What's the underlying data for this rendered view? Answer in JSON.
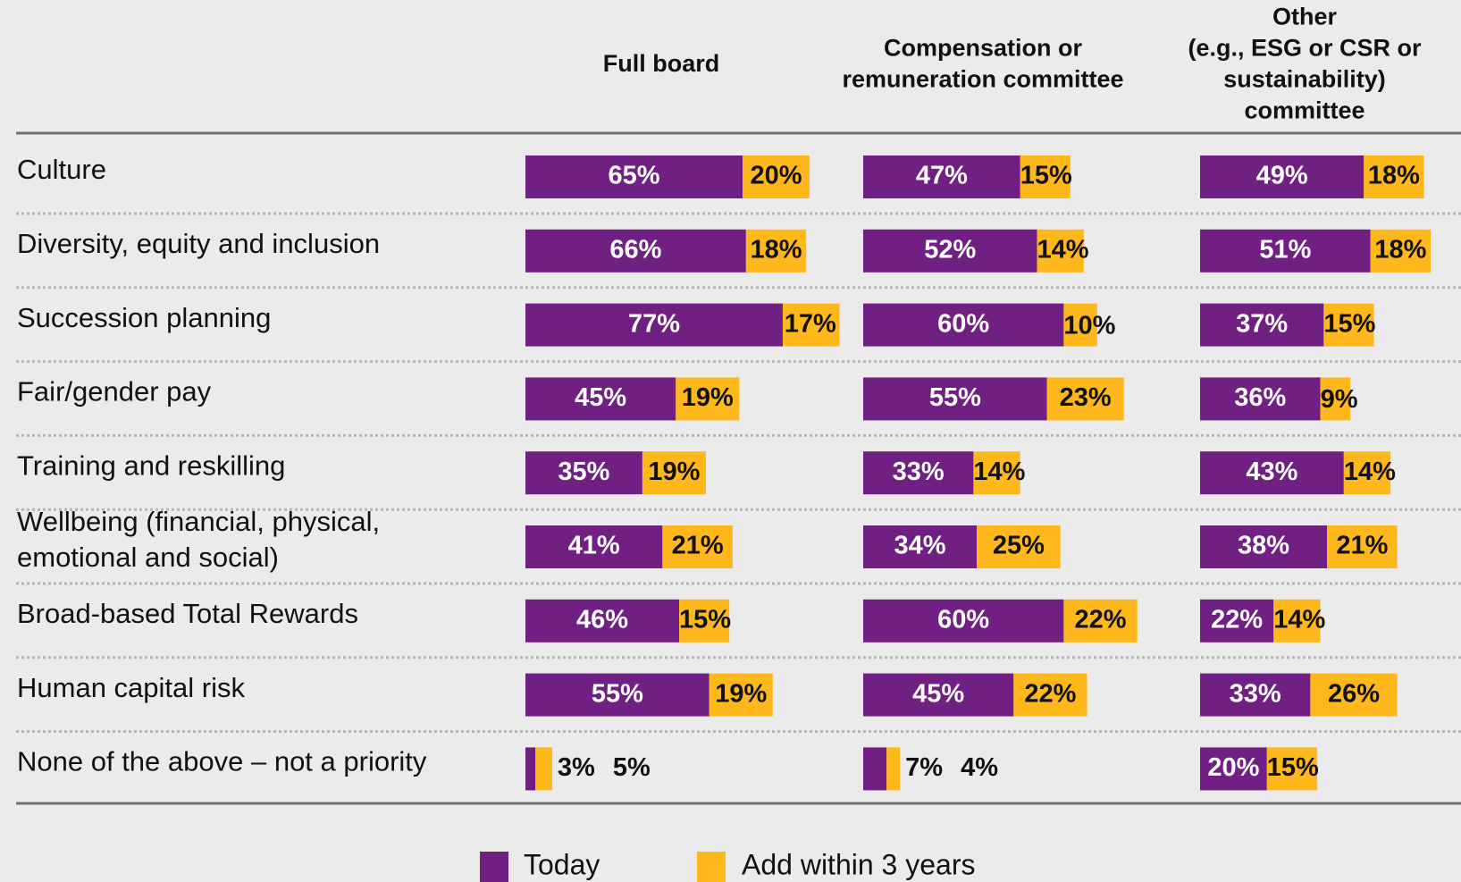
{
  "chart_data": {
    "type": "bar",
    "orientation": "horizontal",
    "stacked": true,
    "categories": [
      "Culture",
      "Diversity, equity and inclusion",
      "Succession planning",
      "Fair/gender pay",
      "Training and reskilling",
      [
        "Wellbeing (financial, physical,",
        "emotional and social)"
      ],
      "Broad-based Total Rewards",
      "Human capital risk",
      "None of the above – not a priority"
    ],
    "legend": [
      {
        "name": "Today",
        "color": "#702082"
      },
      {
        "name": "Add within 3 years",
        "color": "#ffb81c"
      }
    ],
    "panels": [
      {
        "title": [
          "Full board"
        ],
        "series": [
          {
            "values": [
              65,
              66,
              77,
              45,
              35,
              41,
              46,
              55,
              3
            ],
            "value_labels": [
              "65%",
              "66%",
              "77%",
              "45%",
              "35%",
              "41%",
              "46%",
              "55%",
              "3%"
            ]
          },
          {
            "values": [
              20,
              18,
              17,
              19,
              19,
              21,
              15,
              19,
              5
            ],
            "value_labels": [
              "20%",
              "18%",
              "17%",
              "19%",
              "19%",
              "21%",
              "15%",
              "19%",
              "5%"
            ]
          }
        ]
      },
      {
        "title": [
          "Compensation or",
          "remuneration committee"
        ],
        "series": [
          {
            "values": [
              47,
              52,
              60,
              55,
              33,
              34,
              60,
              45,
              7
            ],
            "value_labels": [
              "47%",
              "52%",
              "60%",
              "55%",
              "33%",
              "34%",
              "60%",
              "45%",
              "7%"
            ]
          },
          {
            "values": [
              15,
              14,
              10,
              23,
              14,
              25,
              22,
              22,
              4
            ],
            "value_labels": [
              "15%",
              "14%",
              "10%",
              "23%",
              "14%",
              "25%",
              "22%",
              "22%",
              "4%"
            ]
          }
        ]
      },
      {
        "title": [
          "Other",
          "(e.g., ESG or CSR or",
          "sustainability)",
          "committee"
        ],
        "series": [
          {
            "values": [
              49,
              51,
              37,
              36,
              43,
              38,
              22,
              33,
              20
            ],
            "value_labels": [
              "49%",
              "51%",
              "37%",
              "36%",
              "43%",
              "38%",
              "22%",
              "33%",
              "20%"
            ]
          },
          {
            "values": [
              18,
              18,
              15,
              9,
              14,
              21,
              14,
              26,
              15
            ],
            "value_labels": [
              "18%",
              "18%",
              "15%",
              "9%",
              "14%",
              "21%",
              "14%",
              "26%",
              "15%"
            ]
          }
        ]
      }
    ]
  }
}
